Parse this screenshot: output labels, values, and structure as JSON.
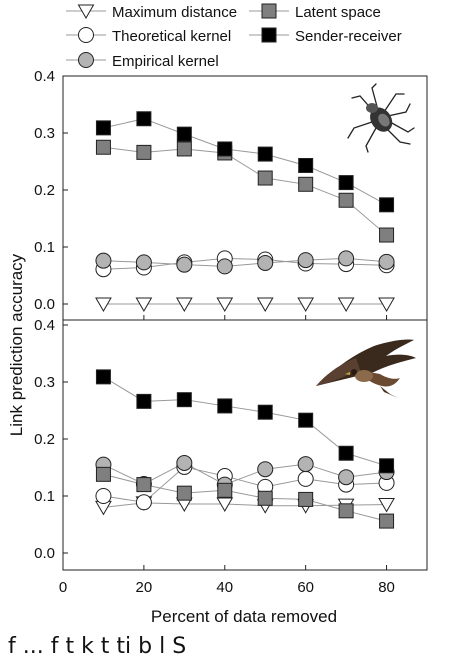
{
  "chart_data": [
    {
      "type": "line",
      "panel": "top",
      "ylim": [
        0,
        0.4
      ],
      "yticks": [
        "0.0",
        "0.1",
        "0.2",
        "0.3",
        "0.4"
      ],
      "x": [
        10,
        20,
        30,
        40,
        50,
        60,
        70,
        80
      ],
      "series": [
        {
          "name": "Maximum distance",
          "marker": "triangle-down",
          "fill": "#ffffff",
          "values": [
            0.0,
            0.0,
            0.0,
            0.0,
            0.0,
            0.0,
            0.0,
            0.0
          ]
        },
        {
          "name": "Theoretical kernel",
          "marker": "circle",
          "fill": "#ffffff",
          "values": [
            0.061,
            0.064,
            0.073,
            0.08,
            0.078,
            0.071,
            0.07,
            0.068
          ]
        },
        {
          "name": "Empirical kernel",
          "marker": "circle",
          "fill": "#b3b3b3",
          "values": [
            0.076,
            0.073,
            0.069,
            0.066,
            0.072,
            0.077,
            0.08,
            0.074
          ]
        },
        {
          "name": "Latent space",
          "marker": "square",
          "fill": "#7f7f7f",
          "values": [
            0.275,
            0.266,
            0.272,
            0.265,
            0.221,
            0.21,
            0.182,
            0.121
          ]
        },
        {
          "name": "Sender-receiver",
          "marker": "square",
          "fill": "#000000",
          "values": [
            0.309,
            0.325,
            0.298,
            0.272,
            0.263,
            0.243,
            0.213,
            0.174
          ]
        }
      ],
      "image": "spider-illustration"
    },
    {
      "type": "line",
      "panel": "bottom",
      "ylim": [
        0,
        0.4
      ],
      "yticks": [
        "0.0",
        "0.1",
        "0.2",
        "0.3",
        "0.4"
      ],
      "xlim": [
        0,
        90
      ],
      "xticks": [
        "0",
        "20",
        "40",
        "60",
        "80"
      ],
      "xlabel": "Percent of data removed",
      "x": [
        10,
        20,
        30,
        40,
        50,
        60,
        70,
        80
      ],
      "series": [
        {
          "name": "Maximum distance",
          "marker": "triangle-down",
          "fill": "#ffffff",
          "values": [
            0.08,
            0.088,
            0.086,
            0.086,
            0.083,
            0.083,
            0.084,
            0.085
          ]
        },
        {
          "name": "Theoretical kernel",
          "marker": "circle",
          "fill": "#ffffff",
          "values": [
            0.1,
            0.089,
            0.151,
            0.135,
            0.116,
            0.13,
            0.12,
            0.123
          ]
        },
        {
          "name": "Empirical kernel",
          "marker": "circle",
          "fill": "#b3b3b3",
          "values": [
            0.155,
            0.121,
            0.158,
            0.12,
            0.147,
            0.156,
            0.133,
            0.142
          ]
        },
        {
          "name": "Latent space",
          "marker": "square",
          "fill": "#7f7f7f",
          "values": [
            0.138,
            0.12,
            0.105,
            0.11,
            0.096,
            0.094,
            0.074,
            0.056
          ]
        },
        {
          "name": "Sender-receiver",
          "marker": "square",
          "fill": "#000000",
          "values": [
            0.309,
            0.266,
            0.269,
            0.258,
            0.247,
            0.233,
            0.175,
            0.153
          ]
        }
      ],
      "image": "hawk-illustration"
    }
  ],
  "ylabel": "Link prediction accuracy",
  "legend": [
    {
      "label": "Maximum distance",
      "marker": "triangle-down",
      "fill": "#ffffff"
    },
    {
      "label": "Latent space",
      "marker": "square",
      "fill": "#7f7f7f"
    },
    {
      "label": "Theoretical kernel",
      "marker": "circle",
      "fill": "#ffffff"
    },
    {
      "label": "Sender-receiver",
      "marker": "square",
      "fill": "#000000"
    },
    {
      "label": "Empirical kernel",
      "marker": "circle",
      "fill": "#b3b3b3"
    }
  ],
  "legend_placement": "top, above panels",
  "line_color": "#999999",
  "caption_fragment": "f  ...   f  t    k        t  ti   b     l    S"
}
